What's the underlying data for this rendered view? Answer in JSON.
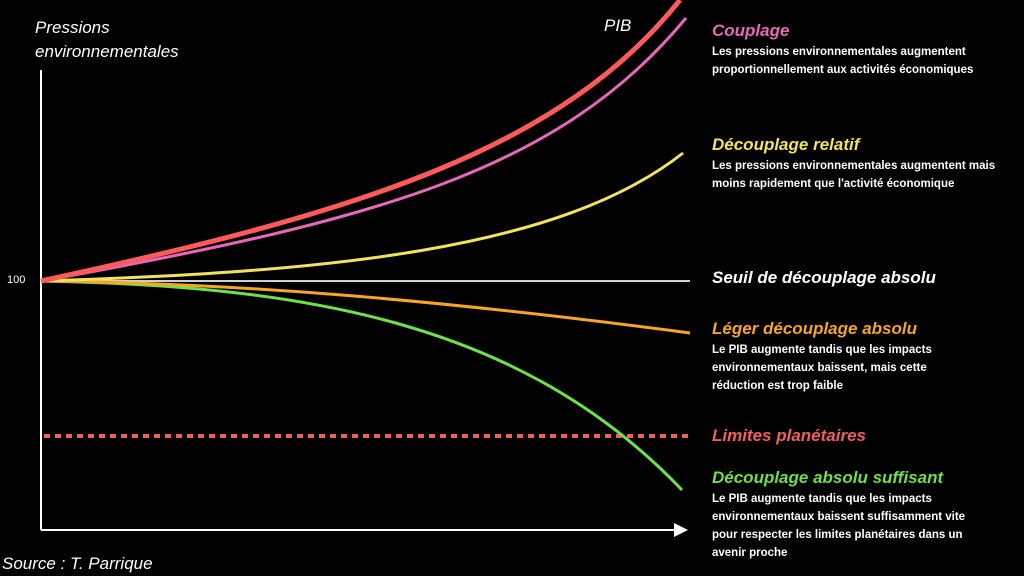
{
  "colors": {
    "background": "#000000",
    "pib": "#ff5a5a",
    "couplage": "#e668b8",
    "relatif": "#f2e45a",
    "seuil": "#ffffff",
    "leger": "#f5a623",
    "limites": "#f0605a",
    "suffisant": "#6ee04a",
    "text": "#ffffff"
  },
  "axes": {
    "y_label": "Pressions environnementales",
    "y_tick": "100",
    "x_arrow_icon": "arrow-right-icon"
  },
  "curve_labels": {
    "pib": "PIB"
  },
  "annotations": {
    "couplage": {
      "title": "Couplage",
      "desc": "Les pressions environnementales augmentent proportionnellement aux activités économiques"
    },
    "relatif": {
      "title": "Découplage relatif",
      "desc": "Les pressions environnementales augmentent mais moins rapidement que l'activité économique"
    },
    "seuil": {
      "title": "Seuil de découplage absolu"
    },
    "leger": {
      "title": "Léger découplage absolu",
      "desc": "Le PIB augmente tandis que les impacts environnementaux baissent, mais cette réduction est trop faible"
    },
    "limites": {
      "title": "Limites planétaires"
    },
    "suffisant": {
      "title": "Découplage absolu suffisant",
      "desc": "Le PIB augmente tandis que les impacts environnementaux baissent suffisamment vite pour respecter les limites planétaires dans un avenir proche"
    }
  },
  "source": "Source : T. Parrique"
}
